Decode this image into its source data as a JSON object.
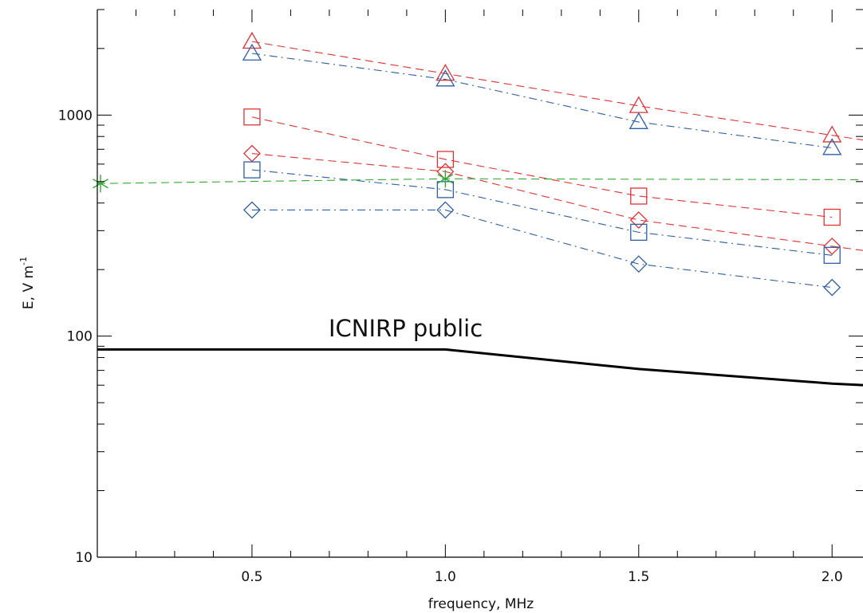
{
  "chart_data": {
    "type": "line",
    "xlabel": "frequency, MHz",
    "ylabel": "E, V m",
    "ylabel_superscript": "-1",
    "xlim": [
      0.1,
      2.08
    ],
    "ylim": [
      10,
      3000
    ],
    "y_scale": "log",
    "grid": false,
    "x_tick_labels": [
      "0.5",
      "1.0",
      "1.5",
      "2.0"
    ],
    "y_tick_labels": [
      "10",
      "100",
      "1000"
    ],
    "x_ticks": [
      0.5,
      1.0,
      1.5,
      2.0
    ],
    "y_ticks": [
      10,
      100,
      1000
    ],
    "annotation": "ICNIRP public",
    "reference_line": {
      "x": [
        0.1,
        1.0,
        1.5,
        2.0,
        2.08
      ],
      "y": [
        87,
        87,
        71,
        61,
        60
      ],
      "color": "#000000"
    },
    "series": [
      {
        "x": [
          0.5,
          1.0,
          1.5,
          2.0
        ],
        "y": [
          2150,
          1540,
          1100,
          810
        ],
        "color": "#dd3333",
        "dash": "dashed",
        "marker": "triangle",
        "extend_to": 2.08
      },
      {
        "x": [
          0.5,
          1.0,
          1.5,
          2.0
        ],
        "y": [
          1900,
          1450,
          930,
          710
        ],
        "color": "#2b5fa8",
        "dash": "dashdot",
        "marker": "triangle"
      },
      {
        "x": [
          0.5,
          1.0,
          1.5,
          2.0
        ],
        "y": [
          980,
          630,
          430,
          345
        ],
        "color": "#dd3333",
        "dash": "dashed",
        "marker": "square"
      },
      {
        "x": [
          0.5,
          1.0,
          1.5,
          2.0
        ],
        "y": [
          670,
          555,
          335,
          255
        ],
        "color": "#dd3333",
        "dash": "dashed",
        "marker": "diamond",
        "extend_to": 2.08
      },
      {
        "x": [
          0.5,
          1.0,
          1.5,
          2.0
        ],
        "y": [
          565,
          460,
          295,
          232
        ],
        "color": "#2b5fa8",
        "dash": "dashdot",
        "marker": "square"
      },
      {
        "x": [
          0.5,
          1.0,
          1.5,
          2.0
        ],
        "y": [
          372,
          372,
          212,
          166
        ],
        "color": "#2b5fa8",
        "dash": "dashdot",
        "marker": "diamond"
      },
      {
        "x": [
          0.1,
          1.0,
          2.08
        ],
        "y": [
          490,
          515,
          510
        ],
        "color": "#33aa33",
        "dash": "dashed",
        "marker": "asterisk",
        "marker_at": [
          0,
          1
        ]
      }
    ]
  }
}
